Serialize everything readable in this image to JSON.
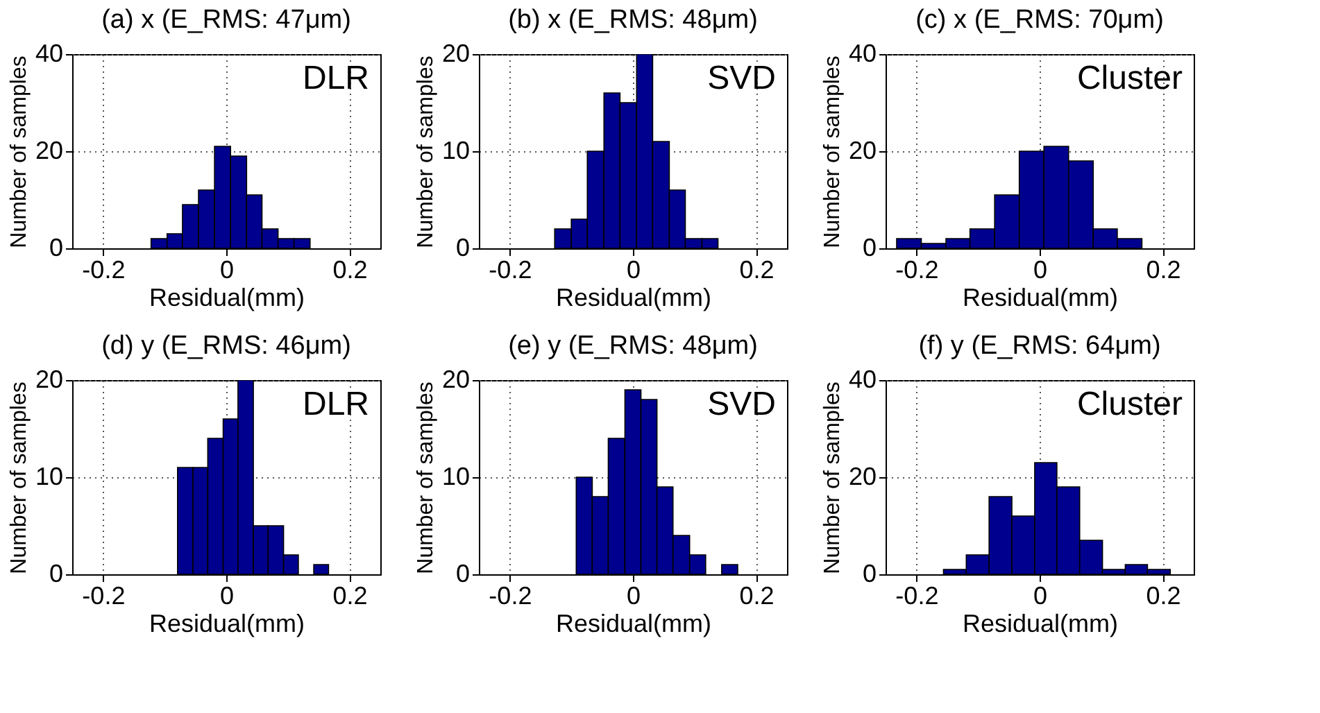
{
  "chart_data": [
    {
      "type": "histogram",
      "title": "(a) x (E_RMS: 47μm)",
      "xlabel": "Residual(mm)",
      "ylabel": "Number of samples",
      "annotations": [
        "DLR"
      ],
      "color": "#00008f",
      "bins": [
        -0.122,
        -0.096,
        -0.071,
        -0.045,
        -0.019,
        0.007,
        0.033,
        0.058,
        0.084,
        0.11,
        0.136
      ],
      "values": [
        2,
        3,
        9,
        12,
        21,
        19,
        11,
        4,
        2,
        2
      ],
      "xlim": [
        -0.25,
        0.25
      ],
      "xticks": [
        -0.2,
        0,
        0.2
      ],
      "ylim": [
        0,
        40
      ],
      "yticks": [
        0,
        20,
        40
      ],
      "grid": true
    },
    {
      "type": "histogram",
      "title": "(b) x (E_RMS: 48μm)",
      "xlabel": "Residual(mm)",
      "ylabel": "Number of samples",
      "annotations": [
        "SVD"
      ],
      "color": "#00008f",
      "bins": [
        -0.127,
        -0.1,
        -0.074,
        -0.047,
        -0.021,
        0.006,
        0.032,
        0.059,
        0.085,
        0.112,
        0.138
      ],
      "values": [
        2,
        3,
        10,
        16,
        15,
        20,
        11,
        6,
        1,
        1
      ],
      "xlim": [
        -0.25,
        0.25
      ],
      "xticks": [
        -0.2,
        0,
        0.2
      ],
      "ylim": [
        0,
        20
      ],
      "yticks": [
        0,
        10,
        20
      ],
      "grid": true
    },
    {
      "type": "histogram",
      "title": "(c) x (E_RMS: 70μm)",
      "xlabel": "Residual(mm)",
      "ylabel": "Number of samples",
      "annotations": [
        "Cluster"
      ],
      "color": "#00008f",
      "bins": [
        -0.232,
        -0.192,
        -0.152,
        -0.113,
        -0.073,
        -0.033,
        0.007,
        0.047,
        0.087,
        0.126,
        0.166
      ],
      "values": [
        2,
        1,
        2,
        4,
        11,
        20,
        21,
        18,
        4,
        2
      ],
      "xlim": [
        -0.25,
        0.25
      ],
      "xticks": [
        -0.2,
        0,
        0.2
      ],
      "ylim": [
        0,
        40
      ],
      "yticks": [
        0,
        20,
        40
      ],
      "grid": true
    },
    {
      "type": "histogram",
      "title": "(d) y (E_RMS: 46μm)",
      "xlabel": "Residual(mm)",
      "ylabel": "Number of samples",
      "annotations": [
        "DLR"
      ],
      "color": "#00008f",
      "bins": [
        -0.079,
        -0.054,
        -0.03,
        -0.005,
        0.019,
        0.044,
        0.068,
        0.093,
        0.117,
        0.142,
        0.166
      ],
      "values": [
        11,
        11,
        14,
        16,
        20,
        5,
        5,
        2,
        0,
        1
      ],
      "xlim": [
        -0.25,
        0.25
      ],
      "xticks": [
        -0.2,
        0,
        0.2
      ],
      "ylim": [
        0,
        20
      ],
      "yticks": [
        0,
        10,
        20
      ],
      "grid": true
    },
    {
      "type": "histogram",
      "title": "(e) y (E_RMS: 48μm)",
      "xlabel": "Residual(mm)",
      "ylabel": "Number of samples",
      "annotations": [
        "SVD"
      ],
      "color": "#00008f",
      "bins": [
        -0.092,
        -0.066,
        -0.04,
        -0.013,
        0.013,
        0.039,
        0.065,
        0.092,
        0.118,
        0.144,
        0.17
      ],
      "values": [
        10,
        8,
        14,
        19,
        18,
        9,
        4,
        2,
        0,
        1
      ],
      "xlim": [
        -0.25,
        0.25
      ],
      "xticks": [
        -0.2,
        0,
        0.2
      ],
      "ylim": [
        0,
        20
      ],
      "yticks": [
        0,
        10,
        20
      ],
      "grid": true
    },
    {
      "type": "histogram",
      "title": "(f) y (E_RMS: 64μm)",
      "xlabel": "Residual(mm)",
      "ylabel": "Number of samples",
      "annotations": [
        "Cluster"
      ],
      "color": "#00008f",
      "bins": [
        -0.156,
        -0.119,
        -0.082,
        -0.045,
        -0.008,
        0.028,
        0.065,
        0.102,
        0.139,
        0.175,
        0.212
      ],
      "values": [
        1,
        4,
        16,
        12,
        23,
        18,
        7,
        1,
        2,
        1
      ],
      "xlim": [
        -0.25,
        0.25
      ],
      "xticks": [
        -0.2,
        0,
        0.2
      ],
      "ylim": [
        0,
        40
      ],
      "yticks": [
        0,
        20,
        40
      ],
      "grid": true
    }
  ]
}
